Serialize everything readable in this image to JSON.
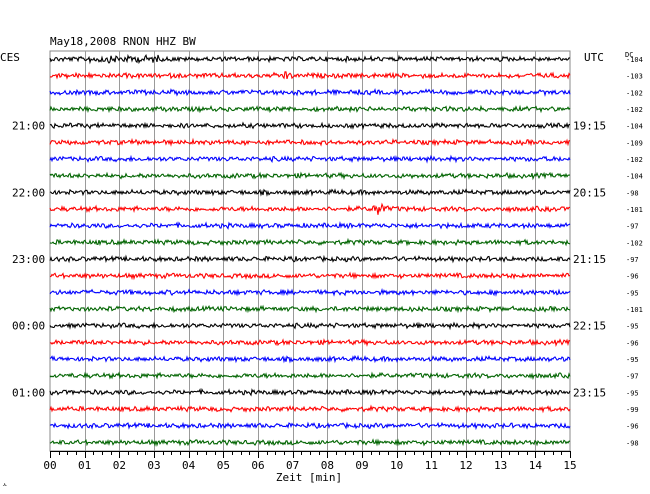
{
  "chart_data": {
    "type": "line",
    "title": "May18,2008  RNON HHZ BW",
    "left_timezone": "CES",
    "right_timezone": "UTC",
    "dc_header": "DC",
    "xlabel": "Zeit [min]",
    "x_ticks": [
      "00",
      "01",
      "02",
      "03",
      "04",
      "05",
      "06",
      "07",
      "08",
      "09",
      "10",
      "11",
      "12",
      "13",
      "14",
      "15"
    ],
    "xlim": [
      0,
      15
    ],
    "trace_colors": [
      "#000000",
      "#ff0000",
      "#0000ff",
      "#006400"
    ],
    "left_hour_labels": [
      {
        "row": 4,
        "text": "21:00"
      },
      {
        "row": 8,
        "text": "22:00"
      },
      {
        "row": 12,
        "text": "23:00"
      },
      {
        "row": 16,
        "text": "00:00"
      },
      {
        "row": 20,
        "text": "01:00"
      }
    ],
    "right_hour_labels": [
      {
        "row": 4,
        "text": "19:15"
      },
      {
        "row": 8,
        "text": "20:15"
      },
      {
        "row": 12,
        "text": "21:15"
      },
      {
        "row": 16,
        "text": "22:15"
      },
      {
        "row": 20,
        "text": "23:15"
      }
    ],
    "dc_offsets": [
      -104,
      -103,
      -102,
      -102,
      -104,
      -109,
      -102,
      -104,
      -98,
      -101,
      -97,
      -102,
      -97,
      -96,
      -95,
      -101,
      -95,
      -96,
      -95,
      -97,
      -95,
      -99,
      -96,
      -98
    ],
    "events": [
      {
        "row": 1,
        "minute": 6.8,
        "amplitude": "small"
      },
      {
        "row": 9,
        "minute": 9.5,
        "amplitude": "large"
      }
    ],
    "footer_mark": "ㅅ",
    "grid": true
  }
}
